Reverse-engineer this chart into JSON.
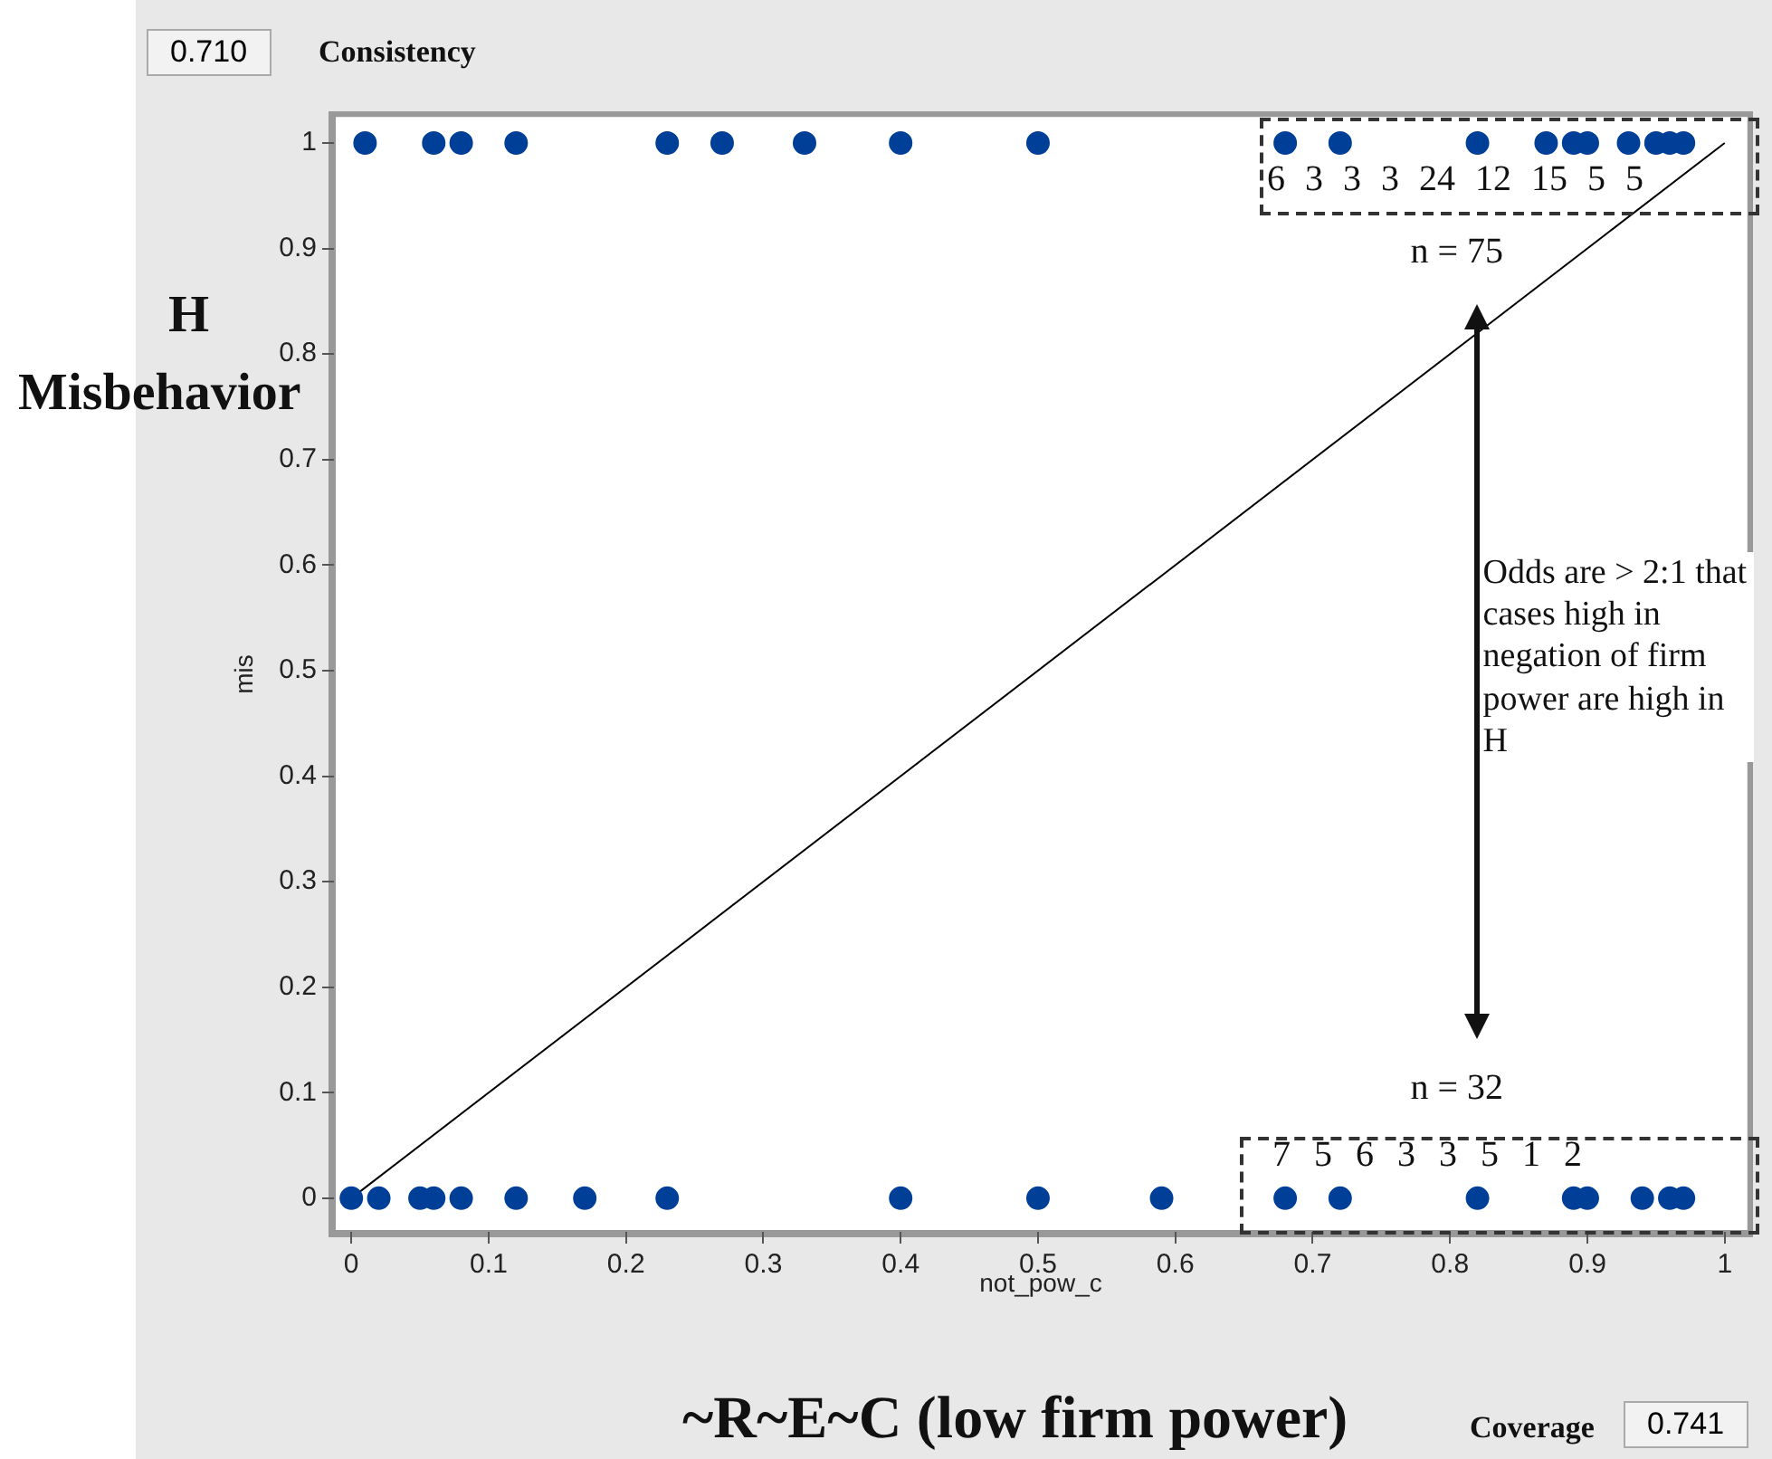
{
  "chart_data": {
    "type": "scatter",
    "xlabel": "not_pow_c",
    "ylabel": "mis",
    "xlim": [
      -0.012,
      1.016
    ],
    "ylim": [
      -0.031,
      1.024
    ],
    "xticks": [
      0,
      0.1,
      0.2,
      0.3,
      0.4,
      0.5,
      0.6,
      0.7,
      0.8,
      0.9,
      1
    ],
    "yticks": [
      0,
      0.1,
      0.2,
      0.3,
      0.4,
      0.5,
      0.6,
      0.7,
      0.8,
      0.9,
      1
    ],
    "grid": false,
    "legend": false,
    "marker": "circle",
    "series": [
      {
        "color": "#003f98",
        "x": [
          0.01,
          0.06,
          0.08,
          0.12,
          0.23,
          0.27,
          0.33,
          0.4,
          0.5,
          0.68,
          0.72,
          0.82,
          0.87,
          0.89,
          0.9,
          0.93,
          0.95,
          0.96,
          0.97,
          0,
          0.02,
          0.05,
          0.06,
          0.08,
          0.12,
          0.17,
          0.23,
          0.4,
          0.5,
          0.59,
          0.68,
          0.72,
          0.82,
          0.89,
          0.9,
          0.94,
          0.96,
          0.97
        ],
        "values": [
          1,
          1,
          1,
          1,
          1,
          1,
          1,
          1,
          1,
          1,
          1,
          1,
          1,
          1,
          1,
          1,
          1,
          1,
          1,
          0,
          0,
          0,
          0,
          0,
          0,
          0,
          0,
          0,
          0,
          0,
          0,
          0,
          0,
          0,
          0,
          0,
          0,
          0
        ]
      },
      {
        "type": "line",
        "marker": "none",
        "color": "#000000",
        "x": [
          0,
          1
        ],
        "values": [
          0,
          1
        ]
      }
    ],
    "annotations": [
      "0.710",
      "Consistency",
      "0.741",
      "Coverage",
      "H",
      "Misbehavior",
      "~R~E~C (low firm power)",
      "n = 75",
      "n = 32",
      "Odds are > 2:1 that cases high in negation of firm power are high in H",
      "6 3 3 3 24 12 15 5 5",
      "7 5 6 3 3 5 1 2"
    ]
  }
}
